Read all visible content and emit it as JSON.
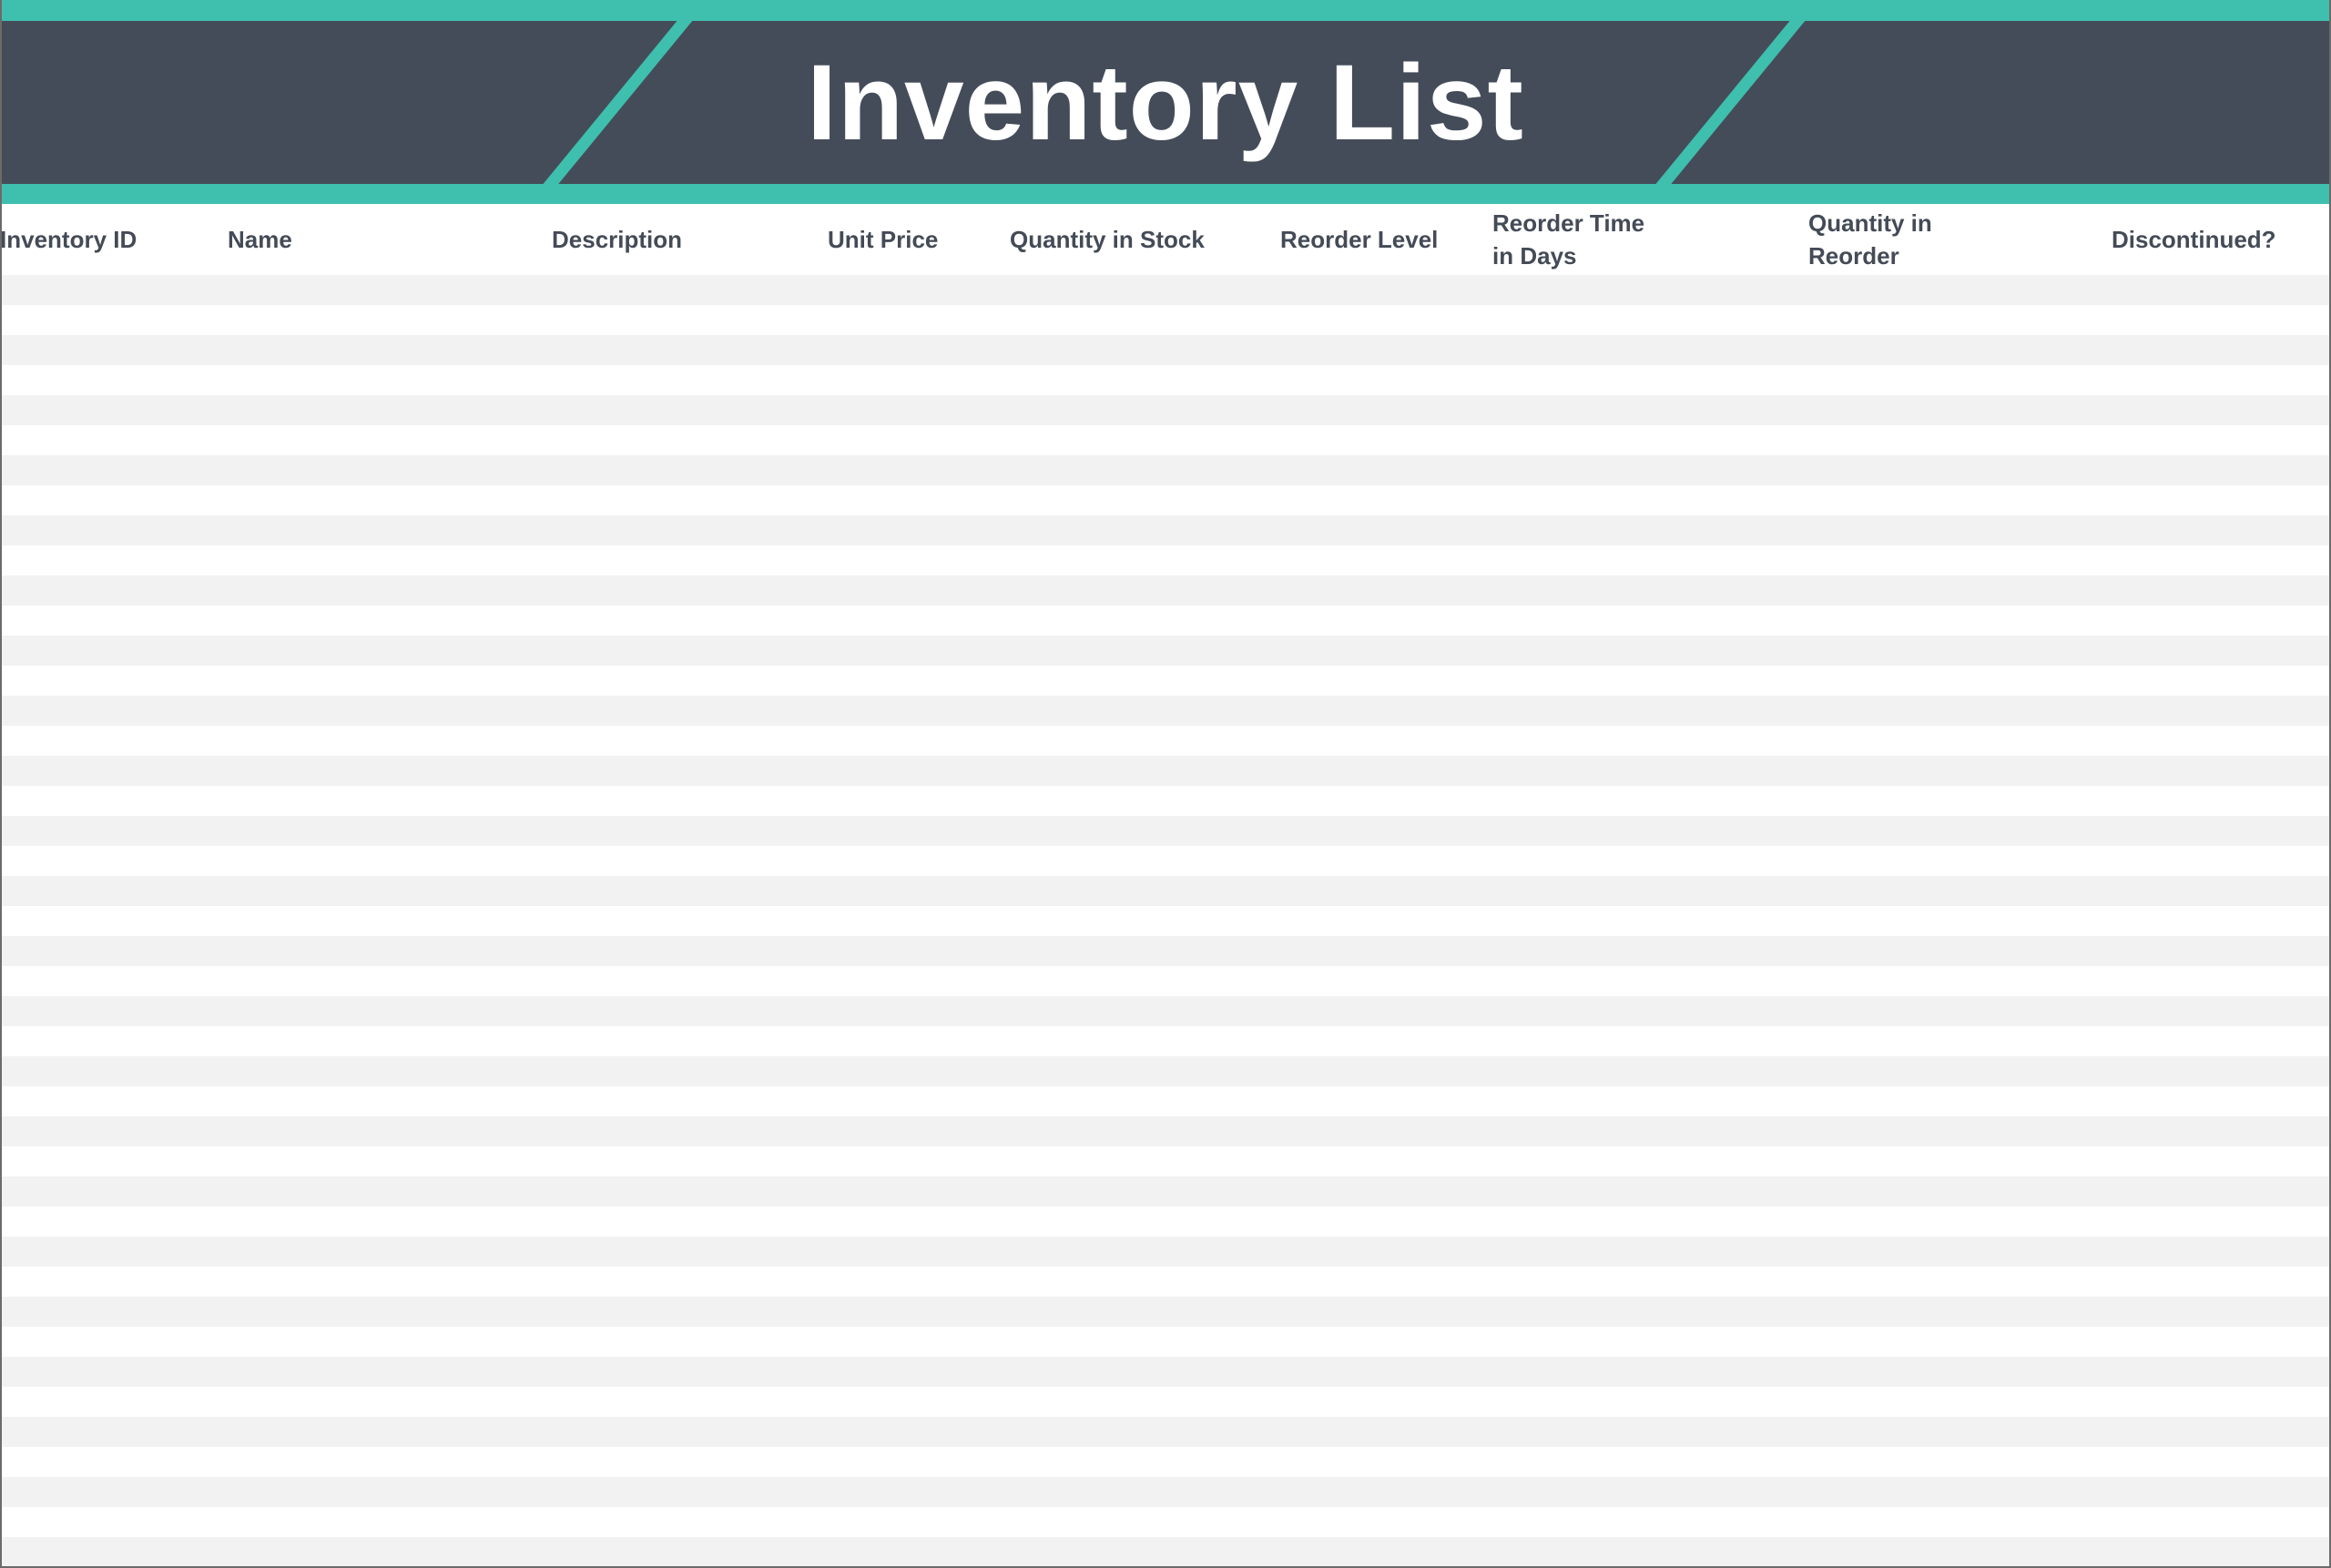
{
  "title": "Inventory List",
  "colors": {
    "accent": "#3fbfae",
    "banner": "#444c59",
    "stripe": "#f2f2f2",
    "header_text": "#444b57"
  },
  "columns": [
    {
      "label": "Inventory ID"
    },
    {
      "label": "Name"
    },
    {
      "label": "Description"
    },
    {
      "label": "Unit Price"
    },
    {
      "label": "Quantity in Stock"
    },
    {
      "label": "Reorder Level"
    },
    {
      "label": "Reorder Time in Days"
    },
    {
      "label": "Quantity in Reorder"
    },
    {
      "label": "Discontinued?"
    }
  ]
}
